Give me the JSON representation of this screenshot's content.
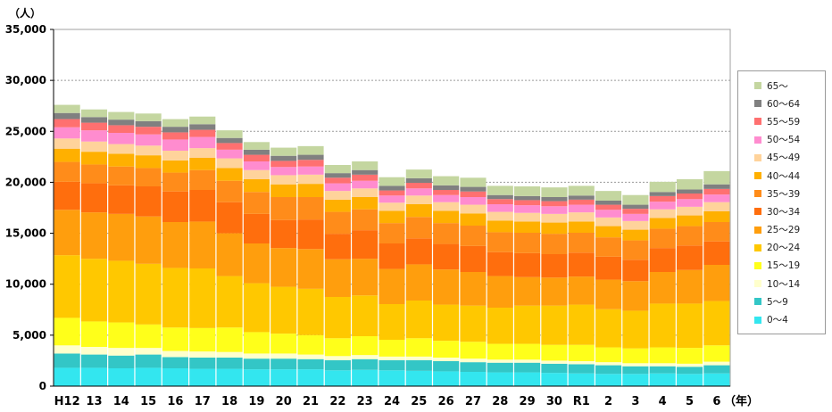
{
  "chart_data": {
    "type": "bar",
    "stacked": true,
    "y_unit_label": "（人）",
    "x_unit_label": "（年）",
    "ylim": [
      0,
      35000
    ],
    "yticks": [
      0,
      5000,
      10000,
      15000,
      20000,
      25000,
      30000,
      35000
    ],
    "ytick_labels": [
      "0",
      "5,000",
      "10,000",
      "15,000",
      "20,000",
      "25,000",
      "30,000",
      "35,000"
    ],
    "grid": "horizontal-dashed",
    "legend_position": "right",
    "categories": [
      "H12",
      "13",
      "14",
      "15",
      "16",
      "17",
      "18",
      "19",
      "20",
      "21",
      "22",
      "23",
      "24",
      "25",
      "26",
      "27",
      "28",
      "29",
      "30",
      "R1",
      "2",
      "3",
      "4",
      "5",
      "6"
    ],
    "series": [
      {
        "name": "0～4",
        "color": "#33e6ef",
        "values": [
          1800,
          1800,
          1750,
          1800,
          1750,
          1700,
          1700,
          1650,
          1650,
          1650,
          1550,
          1600,
          1550,
          1500,
          1450,
          1400,
          1350,
          1350,
          1300,
          1250,
          1200,
          1200,
          1250,
          1200,
          1250
        ]
      },
      {
        "name": "5～9",
        "color": "#33c6c6",
        "values": [
          1400,
          1300,
          1250,
          1300,
          1100,
          1100,
          1100,
          1050,
          1050,
          1000,
          1000,
          1050,
          1000,
          1050,
          1000,
          950,
          950,
          950,
          900,
          900,
          850,
          750,
          700,
          700,
          800
        ]
      },
      {
        "name": "10～14",
        "color": "#ffffcc",
        "values": [
          800,
          750,
          750,
          650,
          600,
          600,
          550,
          500,
          500,
          450,
          400,
          400,
          350,
          350,
          350,
          350,
          300,
          300,
          300,
          300,
          300,
          300,
          300,
          300,
          350
        ]
      },
      {
        "name": "15～19",
        "color": "#ffff1a",
        "values": [
          2700,
          2500,
          2500,
          2300,
          2300,
          2300,
          2400,
          2100,
          1950,
          1900,
          1750,
          1850,
          1650,
          1800,
          1650,
          1650,
          1550,
          1550,
          1550,
          1600,
          1450,
          1450,
          1550,
          1550,
          1600
        ]
      },
      {
        "name": "20～24",
        "color": "#ffc800",
        "values": [
          6150,
          6150,
          6050,
          5950,
          5850,
          5850,
          5050,
          4800,
          4600,
          4550,
          4050,
          4000,
          3500,
          3700,
          3550,
          3550,
          3550,
          3750,
          3850,
          3950,
          3750,
          3700,
          4300,
          4350,
          4350
        ]
      },
      {
        "name": "25～29",
        "color": "#ff9e0d",
        "values": [
          4450,
          4550,
          4600,
          4650,
          4500,
          4600,
          4200,
          3900,
          3800,
          3900,
          3700,
          3600,
          3450,
          3550,
          3450,
          3300,
          3100,
          2800,
          2750,
          2750,
          2900,
          2900,
          3100,
          3300,
          3550
        ]
      },
      {
        "name": "30～34",
        "color": "#ff6e0d",
        "values": [
          2750,
          2850,
          2800,
          2950,
          3000,
          3100,
          3050,
          2900,
          2750,
          2900,
          2500,
          2800,
          2500,
          2550,
          2500,
          2550,
          2350,
          2350,
          2300,
          2350,
          2250,
          2100,
          2350,
          2400,
          2300
        ]
      },
      {
        "name": "35～39",
        "color": "#ff8c1a",
        "values": [
          1950,
          1850,
          1850,
          1800,
          1850,
          1950,
          2100,
          2150,
          2250,
          2200,
          2150,
          2050,
          2000,
          2100,
          2050,
          2000,
          1950,
          2000,
          2000,
          1950,
          1900,
          1900,
          1900,
          1900,
          1900
        ]
      },
      {
        "name": "40～44",
        "color": "#ffb000",
        "values": [
          1300,
          1250,
          1250,
          1250,
          1200,
          1200,
          1250,
          1250,
          1250,
          1300,
          1200,
          1200,
          1200,
          1250,
          1200,
          1200,
          1150,
          1100,
          1100,
          1100,
          1100,
          1050,
          1050,
          1050,
          1050
        ]
      },
      {
        "name": "45～49",
        "color": "#ffd39b",
        "values": [
          1000,
          1000,
          950,
          950,
          950,
          950,
          950,
          900,
          900,
          900,
          850,
          850,
          800,
          850,
          850,
          850,
          850,
          850,
          850,
          900,
          850,
          850,
          850,
          850,
          900
        ]
      },
      {
        "name": "50～54",
        "color": "#ff8ccf",
        "values": [
          1100,
          1100,
          1100,
          1100,
          1100,
          1100,
          850,
          850,
          800,
          800,
          750,
          750,
          700,
          700,
          700,
          750,
          750,
          750,
          750,
          750,
          750,
          700,
          750,
          750,
          750
        ]
      },
      {
        "name": "55～59",
        "color": "#ff7070",
        "values": [
          800,
          750,
          750,
          750,
          700,
          700,
          650,
          650,
          600,
          650,
          550,
          600,
          500,
          550,
          500,
          550,
          500,
          500,
          500,
          500,
          500,
          500,
          550,
          550,
          550
        ]
      },
      {
        "name": "60～64",
        "color": "#808080",
        "values": [
          600,
          550,
          550,
          550,
          550,
          550,
          500,
          500,
          500,
          500,
          450,
          450,
          450,
          450,
          450,
          450,
          400,
          400,
          400,
          400,
          400,
          400,
          400,
          400,
          450
        ]
      },
      {
        "name": "65～",
        "color": "#c4d6a0",
        "values": [
          800,
          750,
          750,
          750,
          750,
          750,
          750,
          750,
          800,
          850,
          800,
          850,
          850,
          850,
          900,
          900,
          900,
          950,
          950,
          950,
          950,
          950,
          1000,
          1000,
          1300
        ]
      }
    ]
  }
}
